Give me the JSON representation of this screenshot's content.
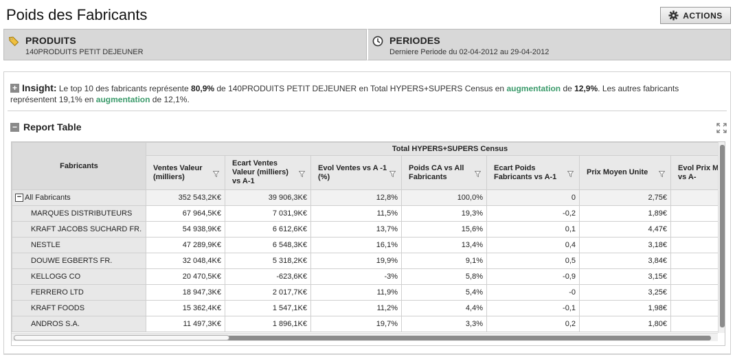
{
  "page": {
    "title": "Poids des Fabricants"
  },
  "actions": {
    "label": "ACTIONS",
    "icon": "gear-icon"
  },
  "filters": {
    "produits": {
      "title": "PRODUITS",
      "value": "140PRODUITS PETIT DEJEUNER",
      "icon": "tag-icon"
    },
    "periodes": {
      "title": "PERIODES",
      "value": "Derniere Periode du 02-04-2012 au 29-04-2012",
      "icon": "clock-icon"
    }
  },
  "insight": {
    "label": "Insight:",
    "t1": " Le top 10 des fabricants représente ",
    "b1": "80,9%",
    "t2": " de 140PRODUITS PETIT DEJEUNER en Total HYPERS+SUPERS Census en ",
    "g1": "augmentation",
    "t3": " de ",
    "b2": "12,9%",
    "t4": ". Les autres fabricants représentent 19,1% en ",
    "g2": "augmentation",
    "t5": " de 12,1%.",
    "accent_color": "#3a9a6a"
  },
  "report": {
    "title": "Report Table"
  },
  "table": {
    "group_header": "Total HYPERS+SUPERS Census",
    "row_header": "Fabricants",
    "columns": [
      "Ventes Valeur (milliers)",
      "Ecart Ventes Valeur (milliers) vs A-1",
      "Evol Ventes vs A -1 (%)",
      "Poids CA vs All Fabricants",
      "Ecart Poids Fabricants vs A-1",
      "Prix Moyen Unite",
      "Evol Prix M Unite vs A-"
    ],
    "rows": [
      {
        "name": "All Fabricants",
        "values": [
          "352 543,2K€",
          "39 906,3K€",
          "12,8%",
          "100,0%",
          "0",
          "2,75€",
          ""
        ]
      },
      {
        "name": "MARQUES DISTRIBUTEURS",
        "values": [
          "67 964,5K€",
          "7 031,9K€",
          "11,5%",
          "19,3%",
          "-0,2",
          "1,89€",
          ""
        ]
      },
      {
        "name": "KRAFT JACOBS SUCHARD FR.",
        "values": [
          "54 938,9K€",
          "6 612,6K€",
          "13,7%",
          "15,6%",
          "0,1",
          "4,47€",
          ""
        ]
      },
      {
        "name": "NESTLE",
        "values": [
          "47 289,9K€",
          "6 548,3K€",
          "16,1%",
          "13,4%",
          "0,4",
          "3,18€",
          ""
        ]
      },
      {
        "name": "DOUWE EGBERTS FR.",
        "values": [
          "32 048,4K€",
          "5 318,2K€",
          "19,9%",
          "9,1%",
          "0,5",
          "3,84€",
          ""
        ]
      },
      {
        "name": "KELLOGG CO",
        "values": [
          "20 470,5K€",
          "-623,6K€",
          "-3%",
          "5,8%",
          "-0,9",
          "3,15€",
          ""
        ]
      },
      {
        "name": "FERRERO LTD",
        "values": [
          "18 947,3K€",
          "2 017,7K€",
          "11,9%",
          "5,4%",
          "-0",
          "3,25€",
          ""
        ]
      },
      {
        "name": "KRAFT FOODS",
        "values": [
          "15 362,4K€",
          "1 547,1K€",
          "11,2%",
          "4,4%",
          "-0,1",
          "1,98€",
          ""
        ]
      },
      {
        "name": "ANDROS S.A.",
        "values": [
          "11 497,3K€",
          "1 896,1K€",
          "19,7%",
          "3,3%",
          "0,2",
          "1,80€",
          ""
        ]
      }
    ]
  }
}
